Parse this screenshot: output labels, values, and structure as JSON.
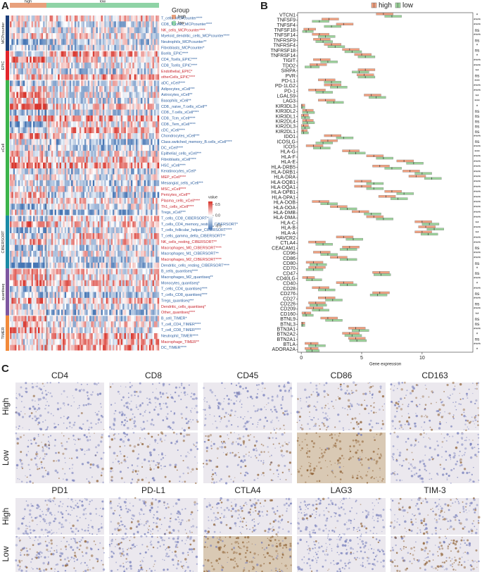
{
  "panel_labels": [
    "A",
    "B",
    "C"
  ],
  "heatmap": {
    "legend_title": "Group",
    "groups": [
      {
        "name": "high",
        "color": "#e8a07c"
      },
      {
        "name": "low",
        "color": "#8fd3a6"
      }
    ],
    "colorbar": {
      "title": "value",
      "ticks": [
        0.5,
        {
          "value": 0,
          "label": "0.0"
        },
        -0.5
      ]
    },
    "sections": [
      {
        "name": "MCPcounter",
        "color": "#1d3f7a",
        "rows": [
          {
            "label": "T_cells_MCPcounter****",
            "color": "#2a5d9f"
          },
          {
            "label": "CD8_T_cells_MCPcounter****",
            "color": "#2a5d9f"
          },
          {
            "label": "NK_cells_MCPcounter****",
            "color": "#c8232c"
          },
          {
            "label": "Myeloid_dendritic_cells_MCPcounter****",
            "color": "#2a5d9f"
          },
          {
            "label": "Neutrophils_MCPcounter**",
            "color": "#2a5d9f"
          },
          {
            "label": "Fibroblasts_MCPcounter*",
            "color": "#2a5d9f"
          }
        ]
      },
      {
        "name": "EPIC",
        "color": "#e3242b",
        "rows": [
          {
            "label": "Bcells_EPIC****",
            "color": "#2a5d9f"
          },
          {
            "label": "CD4_Tcells_EPIC****",
            "color": "#2a5d9f"
          },
          {
            "label": "CD8_Tcells_EPIC****",
            "color": "#2a5d9f"
          },
          {
            "label": "Endothelial_EPIC*",
            "color": "#c8232c"
          },
          {
            "label": "otherCells_EPIC****",
            "color": "#c8232c"
          }
        ]
      },
      {
        "name": "xCell",
        "color": "#3cb44b",
        "rows": [
          {
            "label": "aDC_xCell****",
            "color": "#2a5d9f"
          },
          {
            "label": "Adipocytes_xCell***",
            "color": "#2a5d9f"
          },
          {
            "label": "Astrocytes_xCell**",
            "color": "#2a5d9f"
          },
          {
            "label": "Basophils_xCell**",
            "color": "#2a5d9f"
          },
          {
            "label": "CD8._naive_T.cells_xCell**",
            "color": "#2a5d9f"
          },
          {
            "label": "CD8._T.cells_xCell****",
            "color": "#2a5d9f"
          },
          {
            "label": "CD8._Tcm_xCell****",
            "color": "#2a5d9f"
          },
          {
            "label": "CD8._Tem_xCell****",
            "color": "#2a5d9f"
          },
          {
            "label": "cDC_xCell****",
            "color": "#2a5d9f"
          },
          {
            "label": "Chondrocytes_xCell***",
            "color": "#2a5d9f"
          },
          {
            "label": "Class.switched_memory_B.cells_xCell****",
            "color": "#2a5d9f"
          },
          {
            "label": "DC_xCell****",
            "color": "#2a5d9f"
          },
          {
            "label": "Epithelial_cells_xCell***",
            "color": "#2a5d9f"
          },
          {
            "label": "Fibroblasts_xCell****",
            "color": "#2a5d9f"
          },
          {
            "label": "HSC_xCell****",
            "color": "#2a5d9f"
          },
          {
            "label": "Keratinocytes_xCell*",
            "color": "#2a5d9f"
          },
          {
            "label": "MEP_xCell****",
            "color": "#c8232c"
          },
          {
            "label": "Mesangial_cells_xCell***",
            "color": "#2a5d9f"
          },
          {
            "label": "MSC_xCell****",
            "color": "#c8232c"
          },
          {
            "label": "Pericytes_xCell**",
            "color": "#c8232c"
          },
          {
            "label": "Plasma_cells_xCell****",
            "color": "#c8232c"
          },
          {
            "label": "Th1_cells_xCell****",
            "color": "#c8232c"
          },
          {
            "label": "Tregs_xCell***",
            "color": "#2a5d9f"
          }
        ]
      },
      {
        "name": "CIBERSORT",
        "color": "#1b8ba6",
        "rows": [
          {
            "label": "T_cells_CD8_CIBERSORT****",
            "color": "#2a5d9f"
          },
          {
            "label": "T_cells_CD4_memory_resting_CIBERSORT*",
            "color": "#2a5d9f"
          },
          {
            "label": "T_cells_follicular_helper_CIBERSORT****",
            "color": "#2a5d9f"
          },
          {
            "label": "T_cells_gamma_delta_CIBERSORT**",
            "color": "#2a5d9f"
          },
          {
            "label": "NK_cells_resting_CIBERSORT**",
            "color": "#c8232c"
          },
          {
            "label": "Macrophages_M0_CIBERSORT****",
            "color": "#c8232c"
          },
          {
            "label": "Macrophages_M1_CIBERSORT**",
            "color": "#2a5d9f"
          },
          {
            "label": "Macrophages_M2_CIBERSORT****",
            "color": "#c8232c"
          },
          {
            "label": "Dendritic_cells_resting_CIBERSORT****",
            "color": "#2a5d9f"
          }
        ]
      },
      {
        "name": "quantiseq",
        "color": "#7d56a0",
        "rows": [
          {
            "label": "B_cells_quantiseq****",
            "color": "#2a5d9f"
          },
          {
            "label": "Macrophages_M2_quantiseq**",
            "color": "#2a5d9f"
          },
          {
            "label": "Monocytes_quantiseq*",
            "color": "#2a5d9f"
          },
          {
            "label": "T_cells_CD4_quantiseq****",
            "color": "#2a5d9f"
          },
          {
            "label": "T_cells_CD8_quantiseq****",
            "color": "#2a5d9f"
          },
          {
            "label": "Tregs_quantiseq***",
            "color": "#2a5d9f"
          },
          {
            "label": "Dendritic_cells_quantiseq*",
            "color": "#c8232c"
          },
          {
            "label": "Other_quantiseq****",
            "color": "#c8232c"
          }
        ]
      },
      {
        "name": "TIMER",
        "color": "#f28a3a",
        "rows": [
          {
            "label": "B_cell_TIMER*",
            "color": "#2a5d9f"
          },
          {
            "label": "T_cell_CD4_TIMER****",
            "color": "#2a5d9f"
          },
          {
            "label": "T_cell_CD8_TIMER****",
            "color": "#2a5d9f"
          },
          {
            "label": "Neutrophil_TIMER****",
            "color": "#2a5d9f"
          },
          {
            "label": "Macrophage_TIMER**",
            "color": "#c8232c"
          },
          {
            "label": "DC_TIMER****",
            "color": "#2a5d9f"
          }
        ]
      }
    ]
  },
  "chart_data": {
    "type": "box",
    "x_label": "Gene expression",
    "categories": [
      "VTCN1",
      "TNFSF9",
      "TNFSF4",
      "TNFSF18",
      "TNFSF14",
      "TNFRSF9",
      "TNFRSF4",
      "TNFRSF18",
      "TNFRSF14",
      "TIGIT",
      "TDO2",
      "SIRPA",
      "PVR",
      "PD-L1",
      "PD-1LG2",
      "PD-1",
      "LGALS9",
      "LAG3",
      "KIR3DL3",
      "KIR3DL2",
      "KIR3DL1",
      "KIR2DL4",
      "KIR2DL3",
      "KIR2DL1",
      "IDO1",
      "ICOSLG",
      "ICOS",
      "HLA-G",
      "HLA-F",
      "HLA-E",
      "HLA-DRB5",
      "HLA-DRB1",
      "HLA-DRA",
      "HLA-DQB1",
      "HLA-DQA1",
      "HLA-DPB1",
      "HLA-DPA1",
      "HLA-DOB",
      "HLA-DOA",
      "HLA-DMB",
      "HLA-DMA",
      "HLA-C",
      "HLA-B",
      "HLA-A",
      "HAVCR2",
      "CTLA4",
      "CEACAM1",
      "CD96",
      "CD86",
      "CD80",
      "CD70",
      "CD47",
      "CD40LG",
      "CD40",
      "CD28",
      "CD276",
      "CD27",
      "CD226",
      "CD209",
      "CD160",
      "BTNL9",
      "BTNL3",
      "BTN3A1",
      "BTN2A2",
      "BTN2A1",
      "BTLA",
      "ADORA2A"
    ],
    "series": [
      {
        "name": "high",
        "color": "#f2a07f",
        "q1": [
          6.2,
          1.7,
          2.9,
          0.2,
          0.9,
          1.0,
          1.9,
          3.4,
          4.4,
          1.0,
          0.7,
          4.7,
          4.6,
          1.4,
          1.9,
          0.6,
          5.2,
          1.4,
          0,
          0.1,
          0,
          0.1,
          0,
          0,
          1.9,
          1.6,
          0.4,
          3.4,
          5.4,
          7.9,
          5.9,
          8.4,
          8.9,
          4.4,
          4.4,
          6.9,
          6.4,
          0.9,
          2.4,
          4.2,
          5.4,
          9.4,
          9.7,
          9.4,
          2.9,
          0.6,
          3.4,
          1.0,
          2.4,
          0.4,
          0.6,
          5.9,
          0.1,
          2.9,
          0.9,
          5.9,
          1.4,
          0.6,
          0.4,
          0.05,
          1.6,
          0,
          3.9,
          3.4,
          3.9,
          0.3,
          0.3
        ],
        "median": [
          6.8,
          2.3,
          3.5,
          0.6,
          1.5,
          1.6,
          2.5,
          4.0,
          5.0,
          1.6,
          1.3,
          5.3,
          5.2,
          2.0,
          2.5,
          1.2,
          5.8,
          2.0,
          0.05,
          0.4,
          0.2,
          0.4,
          0.2,
          0.15,
          2.5,
          2.2,
          1.0,
          4.0,
          6.0,
          8.5,
          6.5,
          9.0,
          9.5,
          5.0,
          5.0,
          7.5,
          7.0,
          1.5,
          3.0,
          4.8,
          6.0,
          10.0,
          10.3,
          10.0,
          3.5,
          1.2,
          4.0,
          1.6,
          3.0,
          1.0,
          1.2,
          6.5,
          0.5,
          3.5,
          1.5,
          6.5,
          2.0,
          1.2,
          1.0,
          0.3,
          2.2,
          0.1,
          4.5,
          4.0,
          4.5,
          0.8,
          0.8
        ],
        "q3": [
          7.6,
          3.1,
          4.3,
          1.2,
          2.3,
          2.4,
          3.3,
          4.8,
          5.8,
          2.4,
          2.1,
          6.1,
          6.0,
          2.8,
          3.3,
          2.0,
          6.6,
          2.8,
          0.3,
          1.0,
          0.6,
          1.0,
          0.6,
          0.5,
          3.3,
          3.0,
          1.8,
          4.8,
          6.8,
          9.3,
          7.3,
          9.8,
          10.3,
          5.8,
          5.8,
          8.3,
          7.8,
          2.3,
          3.8,
          5.6,
          6.8,
          10.8,
          11.1,
          10.8,
          4.3,
          2.0,
          4.8,
          2.4,
          3.8,
          1.8,
          2.0,
          7.3,
          1.1,
          4.3,
          2.3,
          7.3,
          2.8,
          2.0,
          1.8,
          0.8,
          3.0,
          0.3,
          5.3,
          4.8,
          5.3,
          1.4,
          1.4
        ]
      },
      {
        "name": "low",
        "color": "#9bd39a",
        "q1": [
          6.9,
          0.9,
          1.9,
          0.1,
          1.4,
          1.2,
          2.2,
          3.6,
          4.7,
          1.6,
          0.3,
          4.2,
          4.7,
          1.9,
          2.4,
          1.2,
          5.6,
          2.1,
          0,
          0.1,
          0,
          0.1,
          0,
          0,
          2.9,
          1.2,
          1.0,
          3.9,
          6.2,
          8.7,
          6.9,
          9.4,
          10.2,
          5.4,
          5.4,
          7.9,
          7.4,
          1.6,
          3.2,
          5.2,
          6.2,
          10.0,
          10.4,
          9.9,
          3.7,
          1.2,
          3.2,
          1.6,
          3.2,
          0.7,
          0.4,
          6.0,
          0.4,
          3.2,
          1.4,
          5.7,
          2.0,
          0.7,
          0.9,
          0.1,
          2.0,
          0,
          4.2,
          3.6,
          4.0,
          0.6,
          0.4
        ],
        "median": [
          7.5,
          1.5,
          2.5,
          0.4,
          2.0,
          1.8,
          2.8,
          4.2,
          5.3,
          2.2,
          0.8,
          4.8,
          5.3,
          2.5,
          3.0,
          1.8,
          6.2,
          2.7,
          0.05,
          0.5,
          0.3,
          0.5,
          0.3,
          0.2,
          3.5,
          1.8,
          1.6,
          4.5,
          6.8,
          9.3,
          7.5,
          10.0,
          10.8,
          6.0,
          6.0,
          8.5,
          8.0,
          2.2,
          3.8,
          5.8,
          6.8,
          10.6,
          11.0,
          10.5,
          4.3,
          1.8,
          3.8,
          2.2,
          3.8,
          1.3,
          1.0,
          6.6,
          0.9,
          3.8,
          2.0,
          6.3,
          2.6,
          1.3,
          1.5,
          0.4,
          2.6,
          0.1,
          4.8,
          4.2,
          4.6,
          1.2,
          0.9
        ],
        "q3": [
          8.3,
          2.3,
          3.3,
          1.0,
          2.8,
          2.6,
          3.6,
          5.0,
          6.1,
          3.0,
          1.5,
          5.6,
          6.1,
          3.3,
          3.8,
          2.6,
          7.0,
          3.5,
          0.3,
          1.1,
          0.7,
          1.1,
          0.7,
          0.6,
          4.3,
          2.6,
          2.4,
          5.3,
          7.6,
          10.1,
          8.3,
          10.8,
          11.6,
          6.8,
          6.8,
          9.3,
          8.8,
          3.0,
          4.6,
          6.6,
          7.6,
          11.4,
          11.8,
          11.3,
          5.1,
          2.6,
          4.6,
          3.0,
          4.6,
          2.1,
          1.8,
          7.4,
          1.7,
          4.6,
          2.8,
          7.1,
          3.4,
          2.1,
          2.3,
          1.0,
          3.4,
          0.3,
          5.6,
          5.0,
          5.4,
          2.0,
          1.5
        ]
      }
    ],
    "significance": [
      "*",
      "****",
      "****",
      "ns",
      "****",
      "ns",
      "*",
      "ns",
      "*",
      "****",
      "****",
      "**",
      "ns",
      "***",
      "****",
      "****",
      "**",
      "***",
      "*",
      "ns",
      "ns",
      "ns",
      "ns",
      "ns",
      "****",
      "ns",
      "****",
      "***",
      "****",
      "****",
      "****",
      "****",
      "****",
      "****",
      "****",
      "****",
      "****",
      "****",
      "****",
      "****",
      "****",
      "**",
      "****",
      "**",
      "****",
      "****",
      "ns",
      "****",
      "****",
      "ns",
      "*",
      "ns",
      "****",
      "*",
      "****",
      "ns",
      "****",
      "ns",
      "****",
      "**",
      "ns",
      "ns",
      "****",
      "*",
      "ns",
      "****",
      "*"
    ],
    "xlim": [
      -0.3,
      14.2
    ],
    "xticks": [
      0,
      5,
      10
    ]
  },
  "ihc": {
    "row_labels": [
      "High",
      "Low"
    ],
    "blocks": [
      {
        "markers": [
          "CD4",
          "CD8",
          "CD45",
          "CD86",
          "CD163"
        ]
      },
      {
        "markers": [
          "PD1",
          "PD-L1",
          "CTLA4",
          "LAG3",
          "TIM-3"
        ]
      }
    ]
  }
}
